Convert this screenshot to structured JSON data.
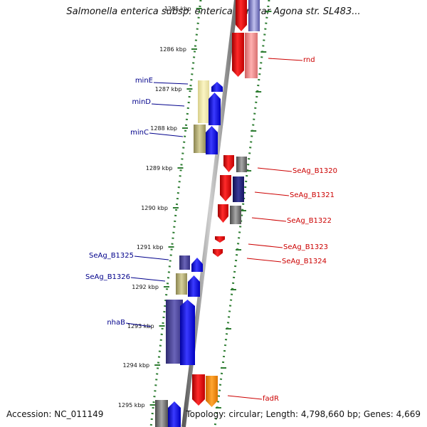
{
  "title": "Salmonella enterica subsp. enterica serovar Agona str. SL483...",
  "footer": {
    "accession": "Accession: NC_011149",
    "topology": "Topology: circular; Length: 4,798,660 bp; Genes: 4,669"
  },
  "scale": {
    "ticks": [
      "1285 kbp",
      "1286 kbp",
      "1287 kbp",
      "1288 kbp",
      "1289 kbp",
      "1290 kbp",
      "1291 kbp",
      "1292 kbp",
      "1293 kbp",
      "1294 kbp",
      "1295 kbp"
    ]
  },
  "genes": [
    {
      "label": "minE",
      "strand": "reverse"
    },
    {
      "label": "minD",
      "strand": "reverse"
    },
    {
      "label": "minC",
      "strand": "reverse"
    },
    {
      "label": "SeAg_B1325",
      "strand": "reverse"
    },
    {
      "label": "SeAg_B1326",
      "strand": "reverse"
    },
    {
      "label": "nhaB",
      "strand": "reverse"
    },
    {
      "label": "rnd",
      "strand": "forward"
    },
    {
      "label": "SeAg_B1320",
      "strand": "forward"
    },
    {
      "label": "SeAg_B1321",
      "strand": "forward"
    },
    {
      "label": "SeAg_B1322",
      "strand": "forward"
    },
    {
      "label": "SeAg_B1323",
      "strand": "forward"
    },
    {
      "label": "SeAg_B1324",
      "strand": "forward"
    },
    {
      "label": "fadR",
      "strand": "forward"
    }
  ],
  "colors": {
    "reverse_label": "#00008b",
    "forward_label": "#cc0000",
    "tick_green": "#2e7d32",
    "backbone": "#808080"
  }
}
